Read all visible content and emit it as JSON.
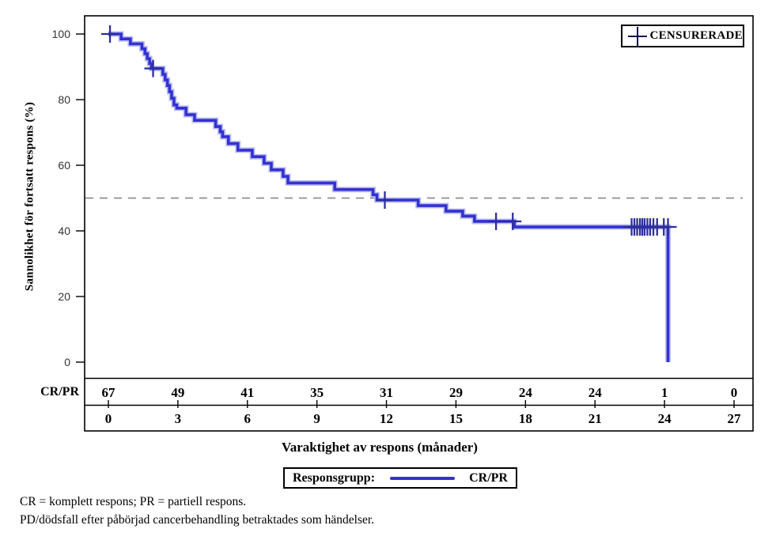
{
  "figure": {
    "y_axis_label": "Sannolikhet för fortsatt respons (%)",
    "x_axis_label": "Varaktighet av respons (månader)",
    "censored_legend": "CENSURERADE",
    "legend": {
      "title": "Responsgrupp:",
      "series_label": "CR/PR"
    },
    "footnotes": [
      "CR = komplett respons; PR = partiell respons.",
      "PD/dödsfall efter påbörjad cancerbehandling betraktades som händelser."
    ]
  },
  "colors": {
    "curve": "#3232d2",
    "curve_halo": "#bcbcf0",
    "censor": "#2e2e99",
    "reference_line": "#8f8f8f",
    "frame": "#000000",
    "y_tick_text": "#333333"
  },
  "chart_data": {
    "type": "line",
    "subtype": "kaplan-meier-step",
    "title": "",
    "xlabel": "Varaktighet av respons (månader)",
    "ylabel": "Sannolikhet för fortsatt respons (%)",
    "xlim": [
      0,
      27
    ],
    "ylim": [
      0,
      100
    ],
    "xticks": [
      0,
      3,
      6,
      9,
      12,
      15,
      18,
      21,
      24,
      27
    ],
    "yticks": [
      0,
      20,
      40,
      60,
      80,
      100
    ],
    "grid": false,
    "legend_position": "top-right",
    "reference_line_y": 50,
    "series": [
      {
        "name": "CR/PR",
        "step_points": [
          [
            0,
            100
          ],
          [
            0.55,
            98.5
          ],
          [
            0.95,
            97.0
          ],
          [
            1.45,
            95.5
          ],
          [
            1.58,
            94.0
          ],
          [
            1.68,
            92.5
          ],
          [
            1.78,
            91.0
          ],
          [
            1.86,
            89.5
          ],
          [
            2.35,
            87.7
          ],
          [
            2.45,
            86.0
          ],
          [
            2.55,
            84.3
          ],
          [
            2.64,
            82.4
          ],
          [
            2.73,
            80.4
          ],
          [
            2.83,
            78.4
          ],
          [
            2.95,
            77.4
          ],
          [
            3.35,
            75.4
          ],
          [
            3.72,
            73.7
          ],
          [
            4.63,
            71.8
          ],
          [
            4.83,
            70.2
          ],
          [
            4.93,
            68.7
          ],
          [
            5.18,
            66.6
          ],
          [
            5.59,
            64.6
          ],
          [
            6.21,
            62.6
          ],
          [
            6.72,
            60.6
          ],
          [
            7.03,
            58.6
          ],
          [
            7.54,
            56.6
          ],
          [
            7.75,
            54.6
          ],
          [
            9.77,
            52.6
          ],
          [
            11.42,
            51.0
          ],
          [
            11.59,
            49.4
          ],
          [
            13.37,
            47.7
          ],
          [
            14.57,
            46.0
          ],
          [
            15.29,
            44.5
          ],
          [
            15.8,
            42.9
          ],
          [
            17.52,
            41.2
          ],
          [
            24.15,
            41.2
          ],
          [
            24.15,
            0
          ]
        ]
      }
    ],
    "censor_marks": [
      [
        0.07,
        100
      ],
      [
        1.93,
        89.5
      ],
      [
        11.93,
        49.4
      ],
      [
        16.73,
        42.9
      ],
      [
        17.45,
        42.9
      ],
      [
        22.58,
        41.2
      ],
      [
        22.7,
        41.2
      ],
      [
        22.82,
        41.2
      ],
      [
        22.94,
        41.2
      ],
      [
        23.04,
        41.2
      ],
      [
        23.14,
        41.2
      ],
      [
        23.26,
        41.2
      ],
      [
        23.38,
        41.2
      ],
      [
        23.52,
        41.2
      ],
      [
        23.68,
        41.2
      ],
      [
        23.97,
        41.2
      ],
      [
        24.15,
        41.2
      ]
    ],
    "at_risk": {
      "label": "CR/PR",
      "months": [
        0,
        3,
        6,
        9,
        12,
        15,
        18,
        21,
        24,
        27
      ],
      "counts": [
        67,
        49,
        41,
        35,
        31,
        29,
        24,
        24,
        1,
        0
      ]
    }
  }
}
